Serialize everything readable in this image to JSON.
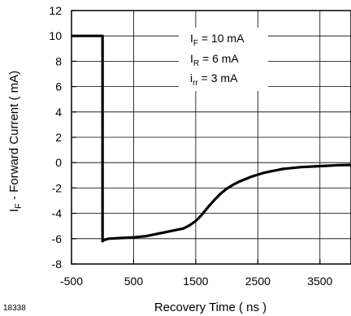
{
  "figure_number": "18338",
  "chart_data": {
    "type": "line",
    "xlabel": "Recovery Time ( ns )",
    "ylabel": {
      "main": "I",
      "sub": "F",
      "rest": " -  Forward Current ( mA)"
    },
    "xlim": [
      -500,
      4000
    ],
    "ylim": [
      -8,
      12
    ],
    "xticks": [
      -500,
      500,
      1500,
      2500,
      3500
    ],
    "yticks": [
      12,
      10,
      8,
      6,
      4,
      2,
      0,
      -2,
      -4,
      -6,
      -8
    ],
    "grid": true,
    "annotations": [
      {
        "main": "I",
        "sub": "F",
        "rest": " = 10 mA"
      },
      {
        "main": "I",
        "sub": "R",
        "rest": " = 6 mA"
      },
      {
        "main": "i",
        "sub": "rr",
        "rest": " = 3 mA"
      }
    ],
    "series": [
      {
        "x": [
          -500,
          0,
          0,
          20,
          100,
          300,
          500,
          700,
          900,
          1100,
          1300,
          1400,
          1500,
          1600,
          1700,
          1800,
          1900,
          2000,
          2100,
          2200,
          2300,
          2400,
          2500,
          2600,
          2700,
          2800,
          2900,
          3000,
          3200,
          3400,
          3600,
          3800,
          4000
        ],
        "y": [
          10,
          10,
          -6.2,
          -6.1,
          -6.0,
          -5.95,
          -5.9,
          -5.8,
          -5.6,
          -5.4,
          -5.2,
          -4.95,
          -4.6,
          -4.1,
          -3.5,
          -2.95,
          -2.45,
          -2.05,
          -1.75,
          -1.5,
          -1.3,
          -1.1,
          -0.95,
          -0.8,
          -0.7,
          -0.6,
          -0.5,
          -0.45,
          -0.35,
          -0.3,
          -0.25,
          -0.2,
          -0.18
        ]
      }
    ]
  }
}
